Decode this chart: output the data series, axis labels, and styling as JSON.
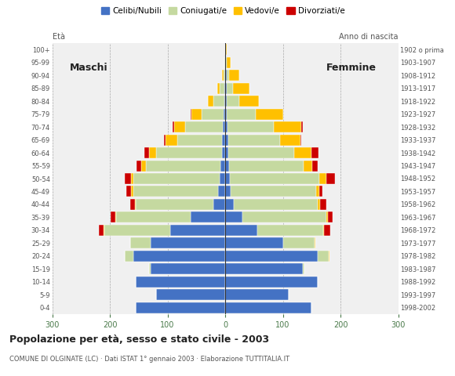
{
  "age_groups": [
    "0-4",
    "5-9",
    "10-14",
    "15-19",
    "20-24",
    "25-29",
    "30-34",
    "35-39",
    "40-44",
    "45-49",
    "50-54",
    "55-59",
    "60-64",
    "65-69",
    "70-74",
    "75-79",
    "80-84",
    "85-89",
    "90-94",
    "95-99",
    "100+"
  ],
  "birth_years": [
    "1998-2002",
    "1993-1997",
    "1988-1992",
    "1983-1987",
    "1978-1982",
    "1973-1977",
    "1968-1972",
    "1963-1967",
    "1958-1962",
    "1953-1957",
    "1948-1952",
    "1943-1947",
    "1938-1942",
    "1933-1937",
    "1928-1932",
    "1923-1927",
    "1918-1922",
    "1913-1917",
    "1908-1912",
    "1903-1907",
    "1902 o prima"
  ],
  "males": {
    "celibi": [
      155,
      120,
      155,
      130,
      160,
      130,
      95,
      60,
      20,
      12,
      10,
      8,
      5,
      5,
      4,
      3,
      2,
      1,
      0,
      0,
      0
    ],
    "coniugati": [
      0,
      0,
      0,
      2,
      15,
      35,
      115,
      130,
      135,
      148,
      150,
      130,
      115,
      78,
      65,
      38,
      18,
      8,
      3,
      1,
      0
    ],
    "vedovi": [
      0,
      0,
      0,
      0,
      0,
      0,
      1,
      1,
      2,
      3,
      4,
      8,
      12,
      20,
      20,
      18,
      10,
      5,
      2,
      1,
      0
    ],
    "divorziati": [
      0,
      0,
      0,
      0,
      0,
      0,
      8,
      8,
      8,
      8,
      10,
      8,
      8,
      3,
      2,
      1,
      0,
      0,
      0,
      0,
      0
    ]
  },
  "females": {
    "celibi": [
      150,
      110,
      160,
      135,
      160,
      100,
      55,
      30,
      15,
      10,
      8,
      6,
      5,
      5,
      4,
      3,
      2,
      2,
      2,
      0,
      0
    ],
    "coniugati": [
      0,
      0,
      0,
      2,
      20,
      55,
      115,
      145,
      145,
      148,
      155,
      130,
      115,
      90,
      80,
      50,
      22,
      12,
      5,
      2,
      0
    ],
    "vedovi": [
      0,
      0,
      0,
      0,
      1,
      2,
      2,
      3,
      5,
      5,
      12,
      15,
      30,
      35,
      48,
      48,
      35,
      28,
      18,
      8,
      2
    ],
    "divorziati": [
      0,
      0,
      0,
      0,
      0,
      0,
      10,
      8,
      10,
      5,
      15,
      10,
      12,
      2,
      2,
      0,
      0,
      0,
      0,
      0,
      0
    ]
  },
  "colors": {
    "celibi": "#4472c4",
    "coniugati": "#c5d9a0",
    "vedovi": "#ffc000",
    "divorziati": "#cc0000"
  },
  "legend_labels": [
    "Celibi/Nubili",
    "Coniugati/e",
    "Vedovi/e",
    "Divorziati/e"
  ],
  "title": "Popolazione per età, sesso e stato civile - 2003",
  "subtitle": "COMUNE DI OLGINATE (LC) · Dati ISTAT 1° gennaio 2003 · Elaborazione TUTTITALIA.IT",
  "label_maschi": "Maschi",
  "label_femmine": "Femmine",
  "ylabel_left": "Età",
  "ylabel_right": "Anno di nascita",
  "xlim": 300,
  "background_color": "#ffffff",
  "plot_bg_color": "#f0f0f0"
}
